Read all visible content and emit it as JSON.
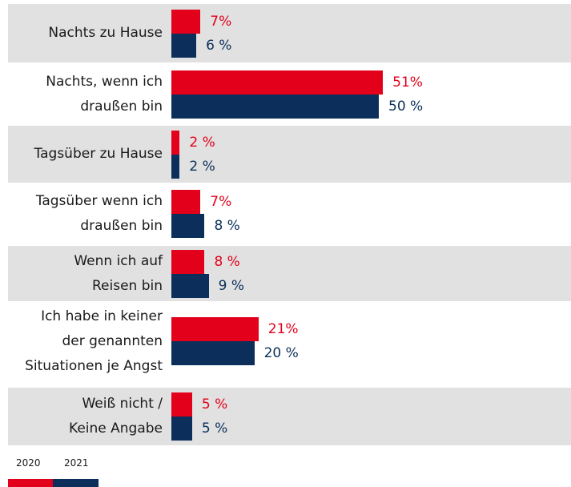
{
  "chart_data": {
    "type": "bar",
    "orientation": "horizontal",
    "categories": [
      "Nachts zu Hause",
      "Nachts, wenn ich\ndraußen bin",
      "Tagsüber zu Hause",
      "Tagsüber wenn ich\ndraußen bin",
      "Wenn ich auf\nReisen bin",
      "Ich habe in keiner\nder genannten\nSituationen je Angst",
      "Weiß nicht /\nKeine Angabe"
    ],
    "series": [
      {
        "name": "2020",
        "color": "#e2001a",
        "values": [
          7,
          51,
          2,
          7,
          8,
          21,
          5
        ],
        "value_labels": [
          "7%",
          "51%",
          "2 %",
          "7%",
          "8 %",
          "21%",
          "5 %"
        ]
      },
      {
        "name": "2021",
        "color": "#0b2f5a",
        "values": [
          6,
          50,
          2,
          8,
          9,
          20,
          5
        ],
        "value_labels": [
          "6 %",
          "50 %",
          "2 %",
          "8 %",
          "9 %",
          "20 %",
          "5 %"
        ]
      }
    ]
  }
}
